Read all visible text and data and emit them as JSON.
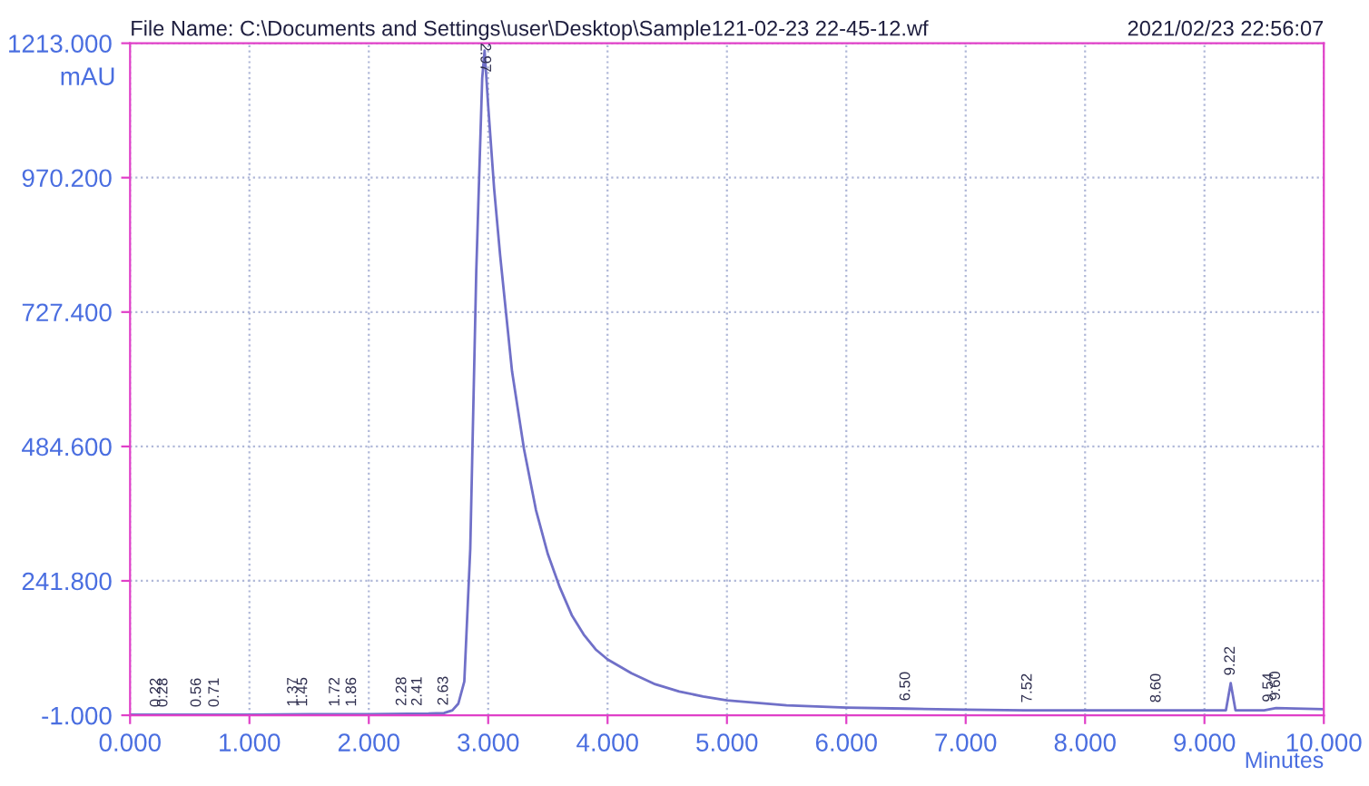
{
  "chart_data": {
    "type": "line",
    "title": "File Name: C:\\Documents and Settings\\user\\Desktop\\Sample121-02-23 22-45-12.wf",
    "subtitle": "2021/02/23 22:56:07",
    "xlabel": "Minutes",
    "ylabel": "mAU",
    "series": [
      {
        "color": "#7070c8",
        "x": [
          0,
          0.5,
          1,
          1.5,
          2,
          2.5,
          2.63,
          2.7,
          2.75,
          2.8,
          2.85,
          2.9,
          2.95,
          2.97,
          3.0,
          3.05,
          3.1,
          3.2,
          3.3,
          3.4,
          3.5,
          3.6,
          3.7,
          3.8,
          3.9,
          4.0,
          4.2,
          4.4,
          4.6,
          4.8,
          5.0,
          5.5,
          6.0,
          6.5,
          7.0,
          7.5,
          8.0,
          8.5,
          9.0,
          9.18,
          9.22,
          9.26,
          9.5,
          9.6,
          10
        ],
        "values": [
          0,
          0,
          0,
          1,
          1,
          2,
          3,
          8,
          20,
          60,
          300,
          800,
          1150,
          1200,
          1100,
          950,
          830,
          620,
          480,
          370,
          290,
          230,
          180,
          145,
          118,
          100,
          75,
          55,
          42,
          33,
          26,
          17,
          13,
          11,
          9,
          8,
          8,
          8,
          8,
          8,
          57,
          8,
          8,
          12,
          10
        ]
      }
    ],
    "xlim": [
      0,
      10
    ],
    "ylim": [
      -1,
      1213
    ],
    "xticks": [
      {
        "value": 0,
        "label": "0.000"
      },
      {
        "value": 1,
        "label": "1.000"
      },
      {
        "value": 2,
        "label": "2.000"
      },
      {
        "value": 3,
        "label": "3.000"
      },
      {
        "value": 4,
        "label": "4.000"
      },
      {
        "value": 5,
        "label": "5.000"
      },
      {
        "value": 6,
        "label": "6.000"
      },
      {
        "value": 7,
        "label": "7.000"
      },
      {
        "value": 8,
        "label": "8.000"
      },
      {
        "value": 9,
        "label": "9.000"
      },
      {
        "value": 10,
        "label": "10.000"
      }
    ],
    "yticks": [
      {
        "value": -1,
        "label": "-1.000"
      },
      {
        "value": 241.8,
        "label": "241.800"
      },
      {
        "value": 484.6,
        "label": "484.600"
      },
      {
        "value": 727.4,
        "label": "727.400"
      },
      {
        "value": 970.2,
        "label": "970.200"
      },
      {
        "value": 1213,
        "label": "1213.000"
      }
    ],
    "grid": true,
    "marker": "none",
    "line_style": "solid",
    "annotations": [
      {
        "text": "0.22",
        "x": 0.22,
        "y": 0
      },
      {
        "text": "0.28",
        "x": 0.28,
        "y": 0
      },
      {
        "text": "0.56",
        "x": 0.56,
        "y": 0
      },
      {
        "text": "0.71",
        "x": 0.71,
        "y": 0
      },
      {
        "text": "1.37",
        "x": 1.37,
        "y": 1
      },
      {
        "text": "1.45",
        "x": 1.45,
        "y": 1
      },
      {
        "text": "1.72",
        "x": 1.72,
        "y": 1
      },
      {
        "text": "1.86",
        "x": 1.86,
        "y": 1
      },
      {
        "text": "2.28",
        "x": 2.28,
        "y": 2
      },
      {
        "text": "2.41",
        "x": 2.41,
        "y": 2
      },
      {
        "text": "2.63",
        "x": 2.63,
        "y": 3
      },
      {
        "text": "2.97",
        "x": 2.97,
        "y": 1200
      },
      {
        "text": "6.50",
        "x": 6.5,
        "y": 11
      },
      {
        "text": "7.52",
        "x": 7.52,
        "y": 8
      },
      {
        "text": "8.60",
        "x": 8.6,
        "y": 8
      },
      {
        "text": "9.22",
        "x": 9.22,
        "y": 57
      },
      {
        "text": "9.54",
        "x": 9.54,
        "y": 9
      },
      {
        "text": "9.60",
        "x": 9.6,
        "y": 12
      }
    ]
  }
}
